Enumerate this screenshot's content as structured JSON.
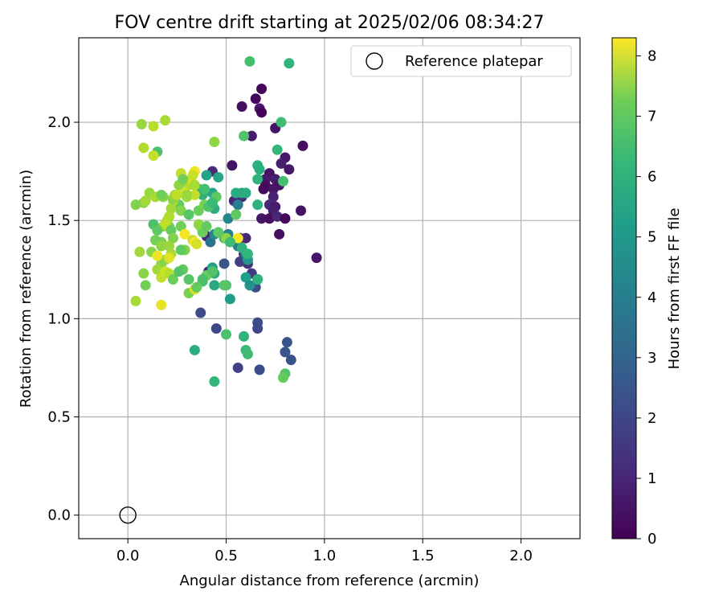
{
  "chart_data": {
    "type": "scatter",
    "title": "FOV centre drift starting at 2025/02/06 08:34:27",
    "xlabel": "Angular distance from reference (arcmin)",
    "ylabel": "Rotation from reference (arcmin)",
    "xlim": [
      -0.25,
      2.3
    ],
    "ylim": [
      -0.12,
      2.43
    ],
    "xticks": [
      0.0,
      0.5,
      1.0,
      1.5,
      2.0
    ],
    "yticks": [
      0.0,
      0.5,
      1.0,
      1.5,
      2.0
    ],
    "xtick_labels": [
      "0.0",
      "0.5",
      "1.0",
      "1.5",
      "2.0"
    ],
    "ytick_labels": [
      "0.0",
      "0.5",
      "1.0",
      "1.5",
      "2.0"
    ],
    "grid": true,
    "colormap": "viridis",
    "colorbar": {
      "label": "Hours from first FF file",
      "range": [
        0,
        8.3
      ],
      "ticks": [
        0,
        1,
        2,
        3,
        4,
        5,
        6,
        7,
        8
      ],
      "tick_labels": [
        "0",
        "1",
        "2",
        "3",
        "4",
        "5",
        "6",
        "7",
        "8"
      ]
    },
    "legend": {
      "placement": "top-right",
      "label": "Reference platepar"
    },
    "reference_point": {
      "x": 0.0,
      "y": 0.0
    },
    "series": [
      {
        "points": [
          [
            0.58,
            2.08,
            0.3
          ],
          [
            0.65,
            2.12,
            0.2
          ],
          [
            0.67,
            2.07,
            0.5
          ],
          [
            0.68,
            2.05,
            0.1
          ],
          [
            0.68,
            2.17,
            0.2
          ],
          [
            0.75,
            1.97,
            0.4
          ],
          [
            0.63,
            1.93,
            0.6
          ],
          [
            0.89,
            1.88,
            0.3
          ],
          [
            0.8,
            1.82,
            0.5
          ],
          [
            0.78,
            1.79,
            0.7
          ],
          [
            0.82,
            1.76,
            0.5
          ],
          [
            0.53,
            1.78,
            0.4
          ],
          [
            0.43,
            1.75,
            1.0
          ],
          [
            0.72,
            1.74,
            0.4
          ],
          [
            0.7,
            1.71,
            0.6
          ],
          [
            0.75,
            1.71,
            0.7
          ],
          [
            0.7,
            1.68,
            0.3
          ],
          [
            0.74,
            1.66,
            0.5
          ],
          [
            0.77,
            1.68,
            0.4
          ],
          [
            0.69,
            1.66,
            0.2
          ],
          [
            0.74,
            1.62,
            0.8
          ],
          [
            0.54,
            1.6,
            0.9
          ],
          [
            0.58,
            1.62,
            1.0
          ],
          [
            0.72,
            1.58,
            0.9
          ],
          [
            0.75,
            1.57,
            0.6
          ],
          [
            0.74,
            1.55,
            0.7
          ],
          [
            0.68,
            1.51,
            0.5
          ],
          [
            0.72,
            1.51,
            0.3
          ],
          [
            0.76,
            1.52,
            0.9
          ],
          [
            0.8,
            1.51,
            0.2
          ],
          [
            0.88,
            1.55,
            0.4
          ],
          [
            0.77,
            1.43,
            0.3
          ],
          [
            0.96,
            1.31,
            0.5
          ],
          [
            0.57,
            1.41,
            0.7
          ],
          [
            0.6,
            1.41,
            0.9
          ],
          [
            0.4,
            1.42,
            0.9
          ],
          [
            0.41,
            1.24,
            1.1
          ],
          [
            0.59,
            1.33,
            1.0
          ],
          [
            0.61,
            1.28,
            1.2
          ],
          [
            0.63,
            1.23,
            1.4
          ],
          [
            0.57,
            1.29,
            1.6
          ],
          [
            0.66,
            0.98,
            2.0
          ],
          [
            0.66,
            0.95,
            1.8
          ],
          [
            0.45,
            0.95,
            1.8
          ],
          [
            0.81,
            0.88,
            2.2
          ],
          [
            0.8,
            0.83,
            2.3
          ],
          [
            0.83,
            0.79,
            2.1
          ],
          [
            0.56,
            0.75,
            1.6
          ],
          [
            0.67,
            0.74,
            2.0
          ],
          [
            0.65,
            1.16,
            2.0
          ],
          [
            0.49,
            1.28,
            2.2
          ],
          [
            0.37,
            1.03,
            1.9
          ],
          [
            0.51,
            1.51,
            3.8
          ],
          [
            0.42,
            1.39,
            3.2
          ],
          [
            0.56,
            1.58,
            3.5
          ],
          [
            0.44,
            1.43,
            3.9
          ],
          [
            0.51,
            1.43,
            3.7
          ],
          [
            0.56,
            1.37,
            3.6
          ],
          [
            0.6,
            1.33,
            4.2
          ],
          [
            0.61,
            1.3,
            4.4
          ],
          [
            0.6,
            1.21,
            4.6
          ],
          [
            0.62,
            1.17,
            4.2
          ],
          [
            0.66,
            1.2,
            4.5
          ],
          [
            0.52,
            1.1,
            4.6
          ],
          [
            0.43,
            1.26,
            4.8
          ],
          [
            0.44,
            1.23,
            5.1
          ],
          [
            0.44,
            1.17,
            5.0
          ],
          [
            0.43,
            1.64,
            4.9
          ],
          [
            0.44,
            1.56,
            5.2
          ],
          [
            0.46,
            1.72,
            4.9
          ],
          [
            0.4,
            1.73,
            4.8
          ],
          [
            0.38,
            1.63,
            5.3
          ],
          [
            0.36,
            1.66,
            5.2
          ],
          [
            0.55,
            1.64,
            5.1
          ],
          [
            0.58,
            1.64,
            5.0
          ],
          [
            0.6,
            1.64,
            5.1
          ],
          [
            0.66,
            1.78,
            5.3
          ],
          [
            0.67,
            1.76,
            5.2
          ],
          [
            0.66,
            1.58,
            5.3
          ],
          [
            0.66,
            1.71,
            5.4
          ],
          [
            0.76,
            1.86,
            5.5
          ],
          [
            0.78,
            2.0,
            5.7
          ],
          [
            0.62,
            2.31,
            5.8
          ],
          [
            0.82,
            2.3,
            5.4
          ],
          [
            0.59,
            1.93,
            6.0
          ],
          [
            0.79,
            1.7,
            5.8
          ],
          [
            0.5,
            1.17,
            5.9
          ],
          [
            0.49,
            1.41,
            5.6
          ],
          [
            0.55,
            1.53,
            6.2
          ],
          [
            0.34,
            0.84,
            5.2
          ],
          [
            0.44,
            0.68,
            5.5
          ],
          [
            0.59,
            0.91,
            5.4
          ],
          [
            0.6,
            0.84,
            5.6
          ],
          [
            0.61,
            0.82,
            5.7
          ],
          [
            0.8,
            0.72,
            6.0
          ],
          [
            0.79,
            0.7,
            6.3
          ],
          [
            0.5,
            0.92,
            5.9
          ],
          [
            0.38,
            1.19,
            5.8
          ],
          [
            0.4,
            1.22,
            6.4
          ],
          [
            0.43,
            1.24,
            6.0
          ],
          [
            0.37,
            1.47,
            6.2
          ],
          [
            0.38,
            1.44,
            6.4
          ],
          [
            0.31,
            1.2,
            6.1
          ],
          [
            0.31,
            1.13,
            6.6
          ],
          [
            0.28,
            1.25,
            6.3
          ],
          [
            0.34,
            1.15,
            7.8
          ],
          [
            0.36,
            1.48,
            6.9
          ],
          [
            0.29,
            1.35,
            6.7
          ],
          [
            0.27,
            1.47,
            6.5
          ],
          [
            0.26,
            1.58,
            6.3
          ],
          [
            0.3,
            1.62,
            7.1
          ],
          [
            0.31,
            1.68,
            7.3
          ],
          [
            0.26,
            1.68,
            6.9
          ],
          [
            0.27,
            1.74,
            7.5
          ],
          [
            0.32,
            1.71,
            7.8
          ],
          [
            0.34,
            1.75,
            8.1
          ],
          [
            0.33,
            1.73,
            7.6
          ],
          [
            0.34,
            1.68,
            7.2
          ],
          [
            0.34,
            1.63,
            7.5
          ],
          [
            0.29,
            1.64,
            7.8
          ],
          [
            0.3,
            1.63,
            7.0
          ],
          [
            0.23,
            1.6,
            7.4
          ],
          [
            0.22,
            1.56,
            7.1
          ],
          [
            0.23,
            1.61,
            6.8
          ],
          [
            0.21,
            1.47,
            6.6
          ],
          [
            0.2,
            1.5,
            7.2
          ],
          [
            0.18,
            1.47,
            6.9
          ],
          [
            0.21,
            1.52,
            7.3
          ],
          [
            0.19,
            1.48,
            7.5
          ],
          [
            0.17,
            1.39,
            6.6
          ],
          [
            0.14,
            1.4,
            6.5
          ],
          [
            0.12,
            1.34,
            6.8
          ],
          [
            0.13,
            1.48,
            5.9
          ],
          [
            0.15,
            1.45,
            6.2
          ],
          [
            0.17,
            1.37,
            6.9
          ],
          [
            0.22,
            1.45,
            6.3
          ],
          [
            0.23,
            1.41,
            6.7
          ],
          [
            0.21,
            1.37,
            7.0
          ],
          [
            0.22,
            1.33,
            7.2
          ],
          [
            0.19,
            1.3,
            7.0
          ],
          [
            0.17,
            1.28,
            6.8
          ],
          [
            0.15,
            1.25,
            7.1
          ],
          [
            0.17,
            1.21,
            7.5
          ],
          [
            0.19,
            1.24,
            7.7
          ],
          [
            0.21,
            1.23,
            7.4
          ],
          [
            0.21,
            1.31,
            7.9
          ],
          [
            0.15,
            1.32,
            8.1
          ],
          [
            0.17,
            1.07,
            8.0
          ],
          [
            0.23,
            1.2,
            6.4
          ],
          [
            0.29,
            1.43,
            8.2
          ],
          [
            0.33,
            1.4,
            7.6
          ],
          [
            0.34,
            1.39,
            8.2
          ],
          [
            0.35,
            1.38,
            7.8
          ],
          [
            0.56,
            1.41,
            8.2
          ],
          [
            0.5,
            1.41,
            6.9
          ],
          [
            0.15,
            1.85,
            5.9
          ],
          [
            0.08,
            1.87,
            7.3
          ],
          [
            0.13,
            1.83,
            7.6
          ],
          [
            0.07,
            1.99,
            7.0
          ],
          [
            0.13,
            1.98,
            7.4
          ],
          [
            0.19,
            2.01,
            7.2
          ],
          [
            0.44,
            1.9,
            6.9
          ],
          [
            0.11,
            1.64,
            7.0
          ],
          [
            0.14,
            1.62,
            7.2
          ],
          [
            0.18,
            1.62,
            6.8
          ],
          [
            0.08,
            1.59,
            6.8
          ],
          [
            0.09,
            1.6,
            7.1
          ],
          [
            0.04,
            1.58,
            6.7
          ],
          [
            0.06,
            1.34,
            7.1
          ],
          [
            0.08,
            1.23,
            6.8
          ],
          [
            0.09,
            1.17,
            6.5
          ],
          [
            0.04,
            1.09,
            7.2
          ],
          [
            0.17,
            1.63,
            6.5
          ],
          [
            0.24,
            1.63,
            7.0
          ],
          [
            0.25,
            1.63,
            7.5
          ],
          [
            0.27,
            1.55,
            6.7
          ],
          [
            0.28,
            1.71,
            6.5
          ],
          [
            0.36,
            1.55,
            6.4
          ],
          [
            0.39,
            1.58,
            6.6
          ],
          [
            0.41,
            1.57,
            6.0
          ],
          [
            0.45,
            1.62,
            6.2
          ],
          [
            0.39,
            1.66,
            5.8
          ],
          [
            0.43,
            1.59,
            5.6
          ],
          [
            0.52,
            1.39,
            5.7
          ],
          [
            0.58,
            1.36,
            5.3
          ],
          [
            0.61,
            1.33,
            5.5
          ],
          [
            0.66,
            1.2,
            5.4
          ],
          [
            0.49,
            1.17,
            6.1
          ],
          [
            0.38,
            1.2,
            5.9
          ],
          [
            0.35,
            1.16,
            6.3
          ],
          [
            0.27,
            1.35,
            6.2
          ],
          [
            0.26,
            1.24,
            6.0
          ],
          [
            0.31,
            1.53,
            6.1
          ],
          [
            0.4,
            1.47,
            6.3
          ],
          [
            0.46,
            1.44,
            6.2
          ]
        ]
      }
    ]
  }
}
